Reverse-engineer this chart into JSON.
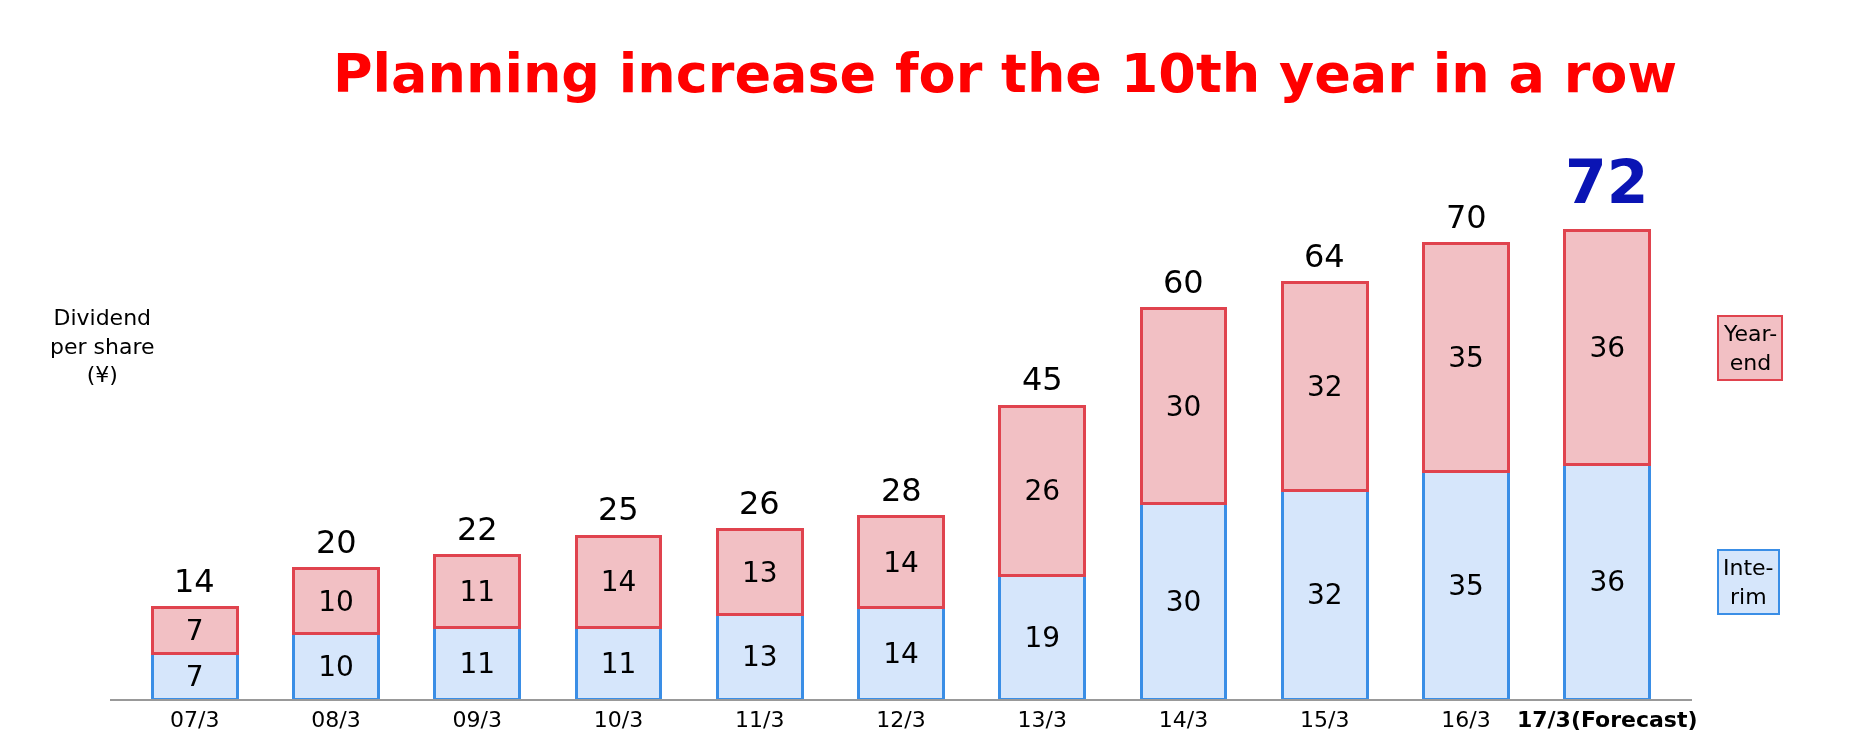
{
  "chart_data": {
    "type": "bar",
    "stacked": true,
    "title": "Planning increase for the 10th year in a row",
    "ylabel": "Dividend per share (¥)",
    "categories": [
      "07/3",
      "08/3",
      "09/3",
      "10/3",
      "11/3",
      "12/3",
      "13/3",
      "14/3",
      "15/3",
      "16/3",
      "17/3(Forecast)"
    ],
    "series": [
      {
        "name": "Inte-rim",
        "color": "#d6e6fb",
        "values": [
          7,
          10,
          11,
          11,
          13,
          14,
          19,
          30,
          32,
          35,
          36
        ]
      },
      {
        "name": "Year-end",
        "color": "#f2c0c4",
        "values": [
          7,
          10,
          11,
          14,
          13,
          14,
          26,
          30,
          32,
          35,
          36
        ]
      }
    ],
    "data_labels": true,
    "totals": [
      "14",
      "20",
      "22",
      "25",
      "26",
      "28",
      "45",
      "60",
      "64",
      "70",
      "72"
    ],
    "legend": "right"
  }
}
